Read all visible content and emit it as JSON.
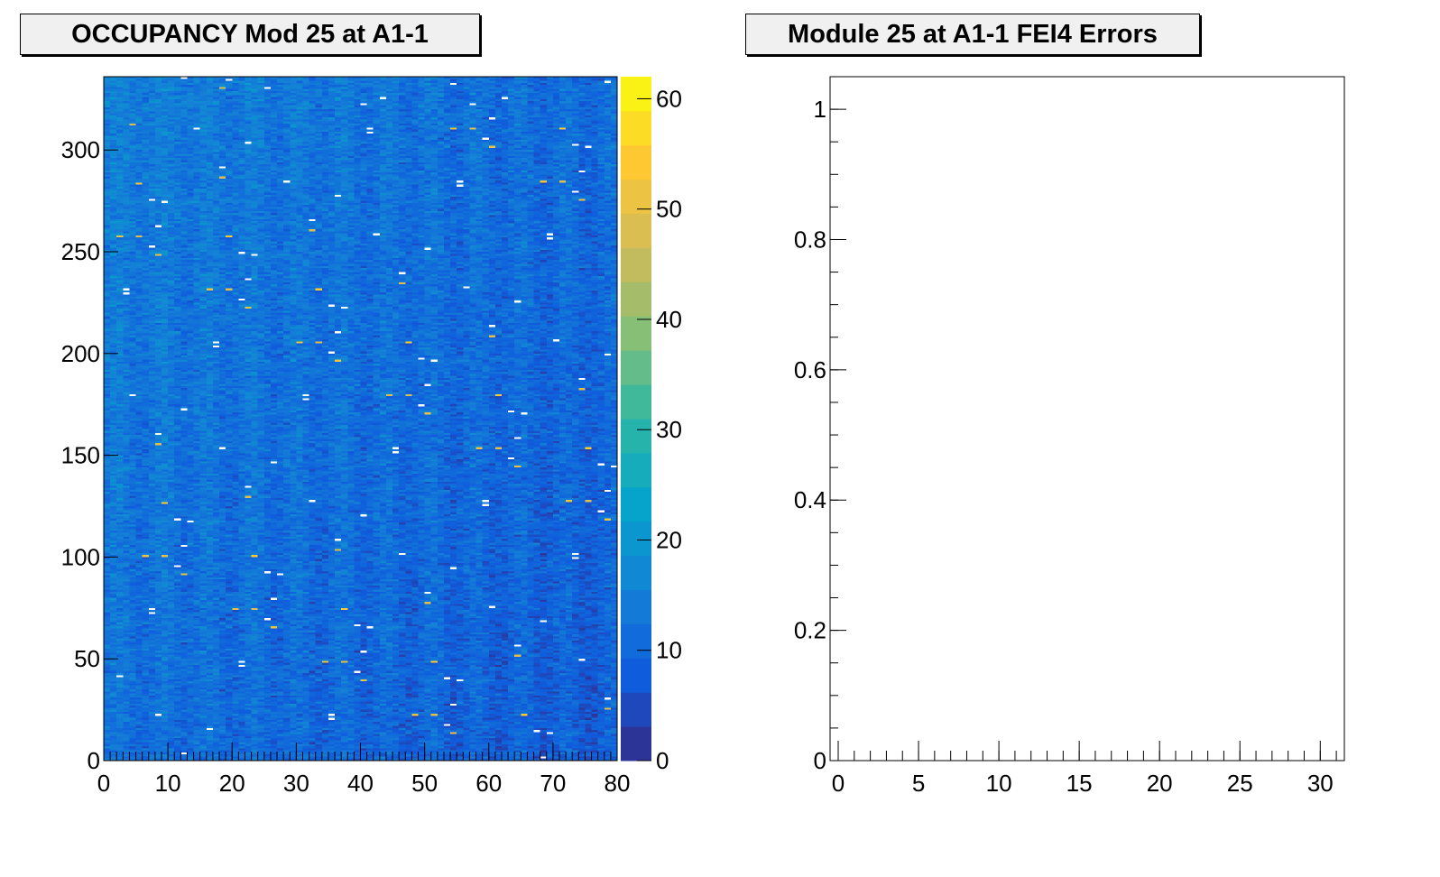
{
  "chart_data": [
    {
      "type": "heatmap",
      "title": "OCCUPANCY Mod 25 at A1-1",
      "xlabel": "",
      "ylabel": "",
      "xlim": [
        0,
        80
      ],
      "ylim": [
        0,
        336
      ],
      "x_ticks": [
        "0",
        "10",
        "20",
        "30",
        "40",
        "50",
        "60",
        "70",
        "80"
      ],
      "y_ticks": [
        "0",
        "50",
        "100",
        "150",
        "200",
        "250",
        "300"
      ],
      "z_range": [
        0,
        62
      ],
      "colorbar_ticks": [
        "0",
        "10",
        "20",
        "30",
        "40",
        "50",
        "60"
      ],
      "n_columns": 80,
      "n_rows": 336,
      "typical_value": 12,
      "notes_visible": "occupancy fairly uniform around 8-20 with scattered empty (white) pixels, slightly higher at low columns and upper rows",
      "colormap": [
        "#352a87",
        "#0f5cdd",
        "#1481d6",
        "#06a4ca",
        "#2eb7a4",
        "#87bf77",
        "#d1bb59",
        "#fec832",
        "#f9fb0e"
      ]
    },
    {
      "type": "bar",
      "title": "Module 25 at A1-1 FEI4 Errors",
      "xlabel": "",
      "ylabel": "",
      "xlim": [
        0,
        31.5
      ],
      "ylim": [
        0,
        1.05
      ],
      "x_ticks": [
        "0",
        "5",
        "10",
        "15",
        "20",
        "25",
        "30"
      ],
      "y_ticks": [
        "0",
        "0.2",
        "0.4",
        "0.6",
        "0.8",
        "1"
      ],
      "categories": [],
      "values": []
    }
  ]
}
